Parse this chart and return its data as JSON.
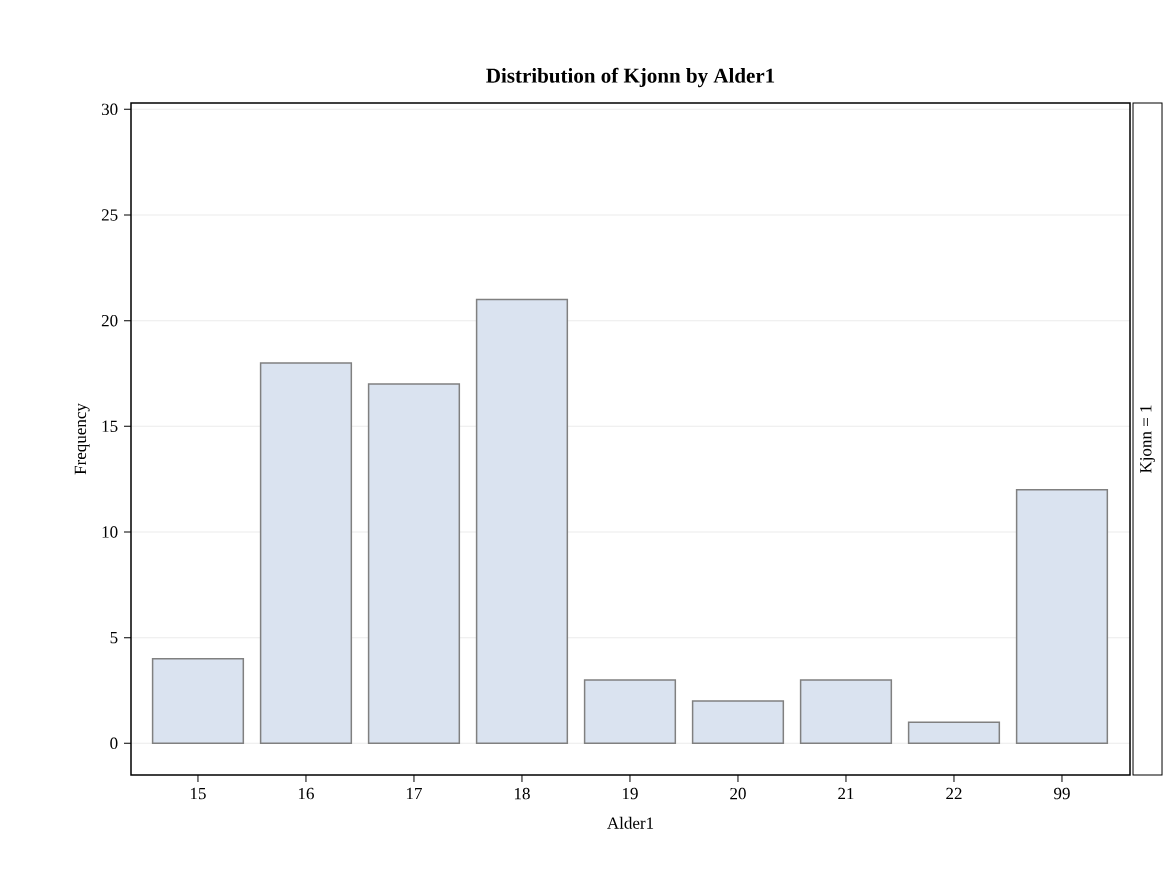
{
  "chart_data": {
    "type": "bar",
    "title": "Distribution of Kjonn by Alder1",
    "xlabel": "Alder1",
    "ylabel": "Frequency",
    "categories": [
      "15",
      "16",
      "17",
      "18",
      "19",
      "20",
      "21",
      "22",
      "99"
    ],
    "values": [
      4,
      18,
      17,
      21,
      3,
      2,
      3,
      1,
      12
    ],
    "color": "#dae3f0",
    "ylim": [
      -1.5,
      30.3
    ],
    "yticks": [
      0,
      5,
      10,
      15,
      20,
      25,
      30
    ],
    "grid": "y",
    "annotations": [
      "Kjonn = 1"
    ]
  }
}
